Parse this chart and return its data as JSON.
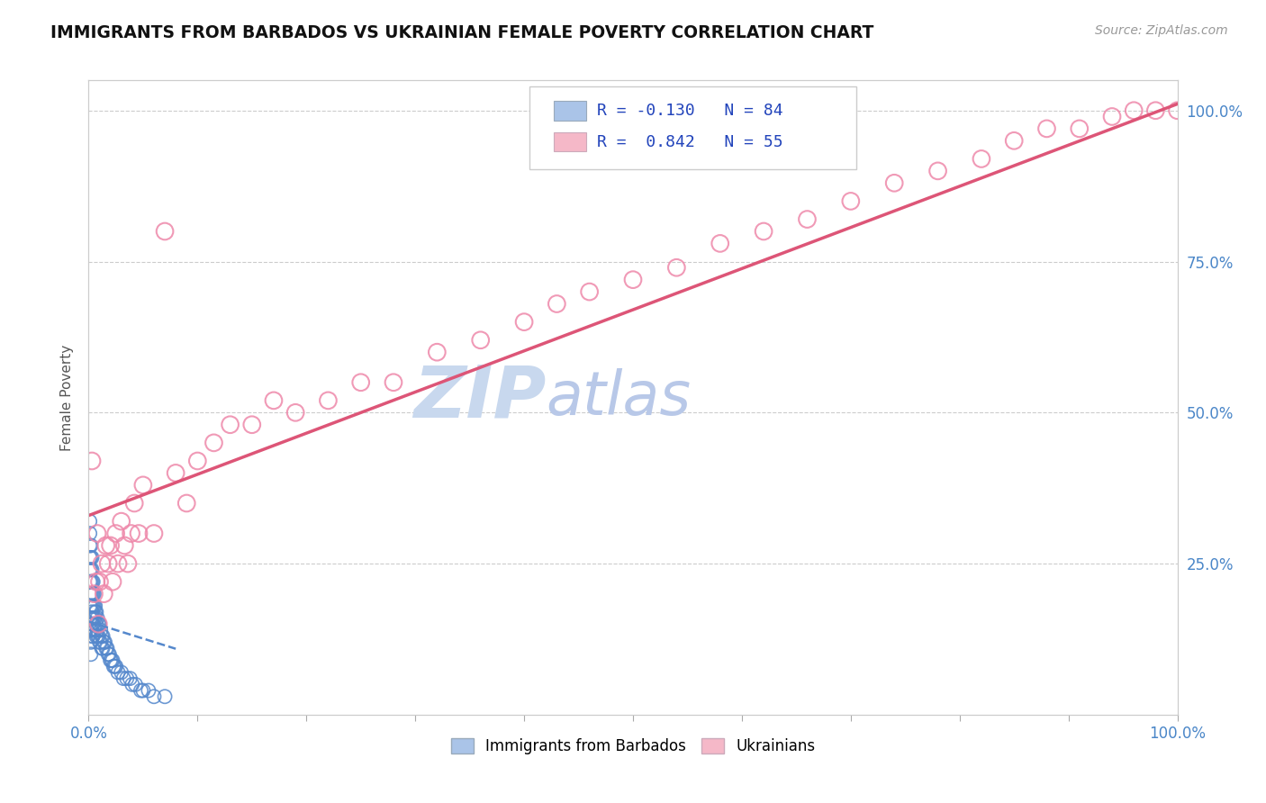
{
  "title": "IMMIGRANTS FROM BARBADOS VS UKRAINIAN FEMALE POVERTY CORRELATION CHART",
  "source": "Source: ZipAtlas.com",
  "ylabel": "Female Poverty",
  "right_yticklabels": [
    "25.0%",
    "50.0%",
    "75.0%",
    "100.0%"
  ],
  "right_ytick_vals": [
    0.25,
    0.5,
    0.75,
    1.0
  ],
  "legend1_label": "R = -0.130  N = 84",
  "legend2_label": "R =  0.842  N = 55",
  "legend1_color": "#aac4e8",
  "legend2_color": "#f5b8c8",
  "scatter_blue_color": "#5588cc",
  "scatter_pink_color": "#ee88aa",
  "trendline_blue_color": "#5588cc",
  "trendline_pink_color": "#dd5577",
  "watermark_zip": "ZIP",
  "watermark_atlas": "atlas",
  "watermark_color_zip": "#c8d8ee",
  "watermark_color_atlas": "#b8c8e8",
  "bottom_legend1": "Immigrants from Barbados",
  "bottom_legend2": "Ukrainians",
  "blue_x": [
    0.001,
    0.001,
    0.001,
    0.001,
    0.001,
    0.001,
    0.001,
    0.001,
    0.001,
    0.001,
    0.002,
    0.002,
    0.002,
    0.002,
    0.002,
    0.002,
    0.002,
    0.002,
    0.002,
    0.002,
    0.003,
    0.003,
    0.003,
    0.003,
    0.003,
    0.003,
    0.003,
    0.003,
    0.003,
    0.003,
    0.004,
    0.004,
    0.004,
    0.004,
    0.004,
    0.004,
    0.005,
    0.005,
    0.005,
    0.005,
    0.006,
    0.006,
    0.006,
    0.006,
    0.007,
    0.007,
    0.007,
    0.008,
    0.008,
    0.008,
    0.009,
    0.009,
    0.01,
    0.01,
    0.011,
    0.011,
    0.012,
    0.012,
    0.013,
    0.013,
    0.014,
    0.015,
    0.016,
    0.017,
    0.018,
    0.019,
    0.02,
    0.021,
    0.022,
    0.023,
    0.024,
    0.025,
    0.027,
    0.03,
    0.032,
    0.035,
    0.038,
    0.04,
    0.043,
    0.048,
    0.05,
    0.055,
    0.06,
    0.07
  ],
  "blue_y": [
    0.32,
    0.3,
    0.28,
    0.26,
    0.24,
    0.22,
    0.2,
    0.18,
    0.16,
    0.14,
    0.28,
    0.26,
    0.24,
    0.22,
    0.2,
    0.18,
    0.16,
    0.14,
    0.12,
    0.1,
    0.26,
    0.24,
    0.22,
    0.2,
    0.18,
    0.17,
    0.16,
    0.15,
    0.14,
    0.13,
    0.22,
    0.2,
    0.18,
    0.16,
    0.15,
    0.13,
    0.2,
    0.18,
    0.16,
    0.14,
    0.18,
    0.17,
    0.16,
    0.14,
    0.17,
    0.15,
    0.13,
    0.16,
    0.14,
    0.13,
    0.15,
    0.13,
    0.15,
    0.12,
    0.14,
    0.12,
    0.13,
    0.11,
    0.13,
    0.11,
    0.12,
    0.12,
    0.11,
    0.11,
    0.1,
    0.1,
    0.09,
    0.09,
    0.09,
    0.08,
    0.08,
    0.08,
    0.07,
    0.07,
    0.06,
    0.06,
    0.06,
    0.05,
    0.05,
    0.04,
    0.04,
    0.04,
    0.03,
    0.03
  ],
  "pink_x": [
    0.003,
    0.005,
    0.007,
    0.008,
    0.009,
    0.01,
    0.012,
    0.014,
    0.016,
    0.018,
    0.02,
    0.022,
    0.025,
    0.027,
    0.03,
    0.033,
    0.036,
    0.039,
    0.042,
    0.046,
    0.05,
    0.06,
    0.07,
    0.08,
    0.09,
    0.1,
    0.115,
    0.13,
    0.15,
    0.17,
    0.19,
    0.22,
    0.25,
    0.28,
    0.32,
    0.36,
    0.4,
    0.43,
    0.46,
    0.5,
    0.54,
    0.58,
    0.62,
    0.66,
    0.7,
    0.74,
    0.78,
    0.82,
    0.85,
    0.88,
    0.91,
    0.94,
    0.96,
    0.98,
    1.0
  ],
  "pink_y": [
    0.42,
    0.2,
    0.22,
    0.3,
    0.15,
    0.22,
    0.25,
    0.2,
    0.28,
    0.25,
    0.28,
    0.22,
    0.3,
    0.25,
    0.32,
    0.28,
    0.25,
    0.3,
    0.35,
    0.3,
    0.38,
    0.3,
    0.8,
    0.4,
    0.35,
    0.42,
    0.45,
    0.48,
    0.48,
    0.52,
    0.5,
    0.52,
    0.55,
    0.55,
    0.6,
    0.62,
    0.65,
    0.68,
    0.7,
    0.72,
    0.74,
    0.78,
    0.8,
    0.82,
    0.85,
    0.88,
    0.9,
    0.92,
    0.95,
    0.97,
    0.97,
    0.99,
    1.0,
    1.0,
    1.0
  ]
}
